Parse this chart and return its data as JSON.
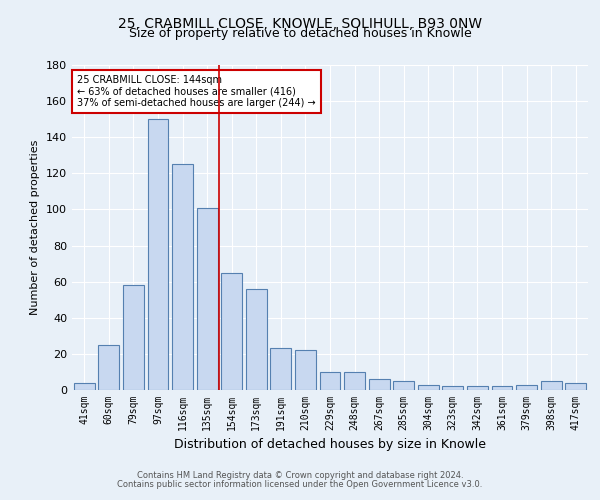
{
  "title_line1": "25, CRABMILL CLOSE, KNOWLE, SOLIHULL, B93 0NW",
  "title_line2": "Size of property relative to detached houses in Knowle",
  "xlabel": "Distribution of detached houses by size in Knowle",
  "ylabel": "Number of detached properties",
  "categories": [
    "41sqm",
    "60sqm",
    "79sqm",
    "97sqm",
    "116sqm",
    "135sqm",
    "154sqm",
    "173sqm",
    "191sqm",
    "210sqm",
    "229sqm",
    "248sqm",
    "267sqm",
    "285sqm",
    "304sqm",
    "323sqm",
    "342sqm",
    "361sqm",
    "379sqm",
    "398sqm",
    "417sqm"
  ],
  "values": [
    4,
    25,
    58,
    150,
    125,
    101,
    65,
    56,
    23,
    22,
    10,
    10,
    6,
    5,
    3,
    2,
    2,
    2,
    3,
    5,
    4
  ],
  "bar_color": "#c8d8f0",
  "bar_edge_color": "#5580b0",
  "vline_x": 5.5,
  "vline_color": "#cc0000",
  "ylim": [
    0,
    180
  ],
  "yticks": [
    0,
    20,
    40,
    60,
    80,
    100,
    120,
    140,
    160,
    180
  ],
  "annotation_text": "25 CRABMILL CLOSE: 144sqm\n← 63% of detached houses are smaller (416)\n37% of semi-detached houses are larger (244) →",
  "annotation_box_color": "#ffffff",
  "annotation_box_edge": "#cc0000",
  "footer_line1": "Contains HM Land Registry data © Crown copyright and database right 2024.",
  "footer_line2": "Contains public sector information licensed under the Open Government Licence v3.0.",
  "bg_color": "#e8f0f8",
  "plot_bg_color": "#e8f0f8",
  "grid_color": "#ffffff",
  "title1_fontsize": 10,
  "title2_fontsize": 9,
  "ylabel_fontsize": 8,
  "xlabel_fontsize": 9,
  "tick_fontsize": 7,
  "annot_fontsize": 7,
  "footer_fontsize": 6
}
